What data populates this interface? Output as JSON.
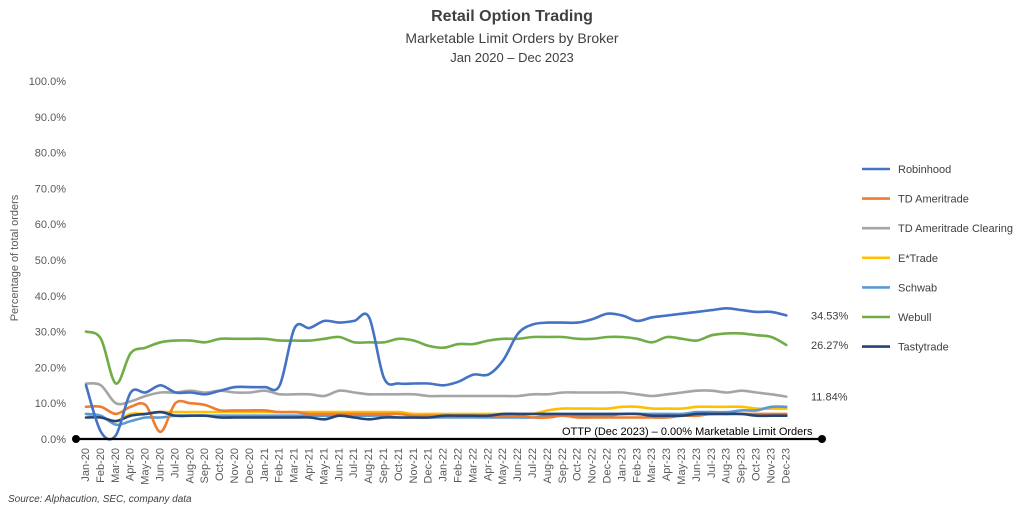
{
  "chart_data": {
    "type": "line",
    "title": "Retail Option Trading",
    "subtitle": "Marketable Limit Orders by Broker",
    "date_range": "Jan 2020 – Dec 2023",
    "ylabel": "Percentage of total orders",
    "ylim": [
      0,
      100
    ],
    "yticks": [
      "0.0%",
      "10.0%",
      "20.0%",
      "30.0%",
      "40.0%",
      "50.0%",
      "60.0%",
      "70.0%",
      "80.0%",
      "90.0%",
      "100.0%"
    ],
    "grid": false,
    "legend_position": "right",
    "categories": [
      "Jan-20",
      "Feb-20",
      "Mar-20",
      "Apr-20",
      "May-20",
      "Jun-20",
      "Jul-20",
      "Aug-20",
      "Sep-20",
      "Oct-20",
      "Nov-20",
      "Dec-20",
      "Jan-21",
      "Feb-21",
      "Mar-21",
      "Apr-21",
      "May-21",
      "Jun-21",
      "Jul-21",
      "Aug-21",
      "Sep-21",
      "Oct-21",
      "Nov-21",
      "Dec-21",
      "Jan-22",
      "Feb-22",
      "Mar-22",
      "Apr-22",
      "May-22",
      "Jun-22",
      "Jul-22",
      "Aug-22",
      "Sep-22",
      "Oct-22",
      "Nov-22",
      "Dec-22",
      "Jan-23",
      "Feb-23",
      "Mar-23",
      "Apr-23",
      "May-23",
      "Jun-23",
      "Jul-23",
      "Aug-23",
      "Sep-23",
      "Oct-23",
      "Nov-23",
      "Dec-23"
    ],
    "series": [
      {
        "name": "Robinhood",
        "color": "#4472C4",
        "values": [
          15,
          2,
          1,
          13,
          13,
          15,
          13,
          13,
          12.5,
          13.5,
          14.5,
          14.5,
          14.5,
          15,
          31,
          31,
          33,
          32.5,
          33,
          34,
          17,
          15.5,
          15.5,
          15.5,
          15,
          16,
          18,
          18,
          22,
          29.5,
          32,
          32.5,
          32.5,
          32.5,
          33.5,
          35,
          34.5,
          33,
          34,
          34.5,
          35,
          35.5,
          36,
          36.5,
          36,
          35.5,
          35.5,
          34.53
        ],
        "end_label": "34.53%"
      },
      {
        "name": "TD Ameritrade",
        "color": "#ED7D31",
        "values": [
          9,
          9,
          7,
          9,
          9.5,
          2,
          10,
          10,
          9.5,
          8,
          8,
          8,
          8,
          7.5,
          7.5,
          7,
          7,
          7,
          7,
          7,
          7,
          7,
          6.5,
          6.5,
          6.5,
          6.5,
          6.5,
          6.5,
          6.5,
          6.5,
          6,
          6,
          6.5,
          6,
          6,
          6,
          6,
          6,
          6,
          6,
          6.5,
          6.5,
          7,
          7,
          7,
          7,
          7,
          7
        ]
      },
      {
        "name": "TD Ameritrade Clearing",
        "color": "#A5A5A5",
        "values": [
          15.5,
          15,
          10,
          10.5,
          12,
          13,
          13,
          13.5,
          13,
          13.5,
          13,
          13,
          13.5,
          12.5,
          12.5,
          12.5,
          12,
          13.5,
          13,
          12.5,
          12.5,
          12.5,
          12.5,
          12,
          12,
          12,
          12,
          12,
          12,
          12,
          12.5,
          12.5,
          13,
          13,
          13,
          13,
          13,
          12.5,
          12,
          12.5,
          13,
          13.5,
          13.5,
          13,
          13.5,
          13,
          12.5,
          11.84
        ],
        "end_label": "11.84%"
      },
      {
        "name": "E*Trade",
        "color": "#FFC000",
        "values": [
          7,
          6,
          5,
          7,
          7,
          7.5,
          7.5,
          7.5,
          7.5,
          7.5,
          7.5,
          7.5,
          7.5,
          7.5,
          7.5,
          7.5,
          7.5,
          7.5,
          7.5,
          7.5,
          7.5,
          7.5,
          7,
          7,
          7,
          7,
          7,
          7,
          7,
          7,
          7,
          8,
          8.5,
          8.5,
          8.5,
          8.5,
          9,
          9,
          8.5,
          8.5,
          8.5,
          9,
          9,
          9,
          9,
          8.5,
          8.5,
          8.5
        ]
      },
      {
        "name": "Schwab",
        "color": "#5B9BD5",
        "values": [
          7,
          6.5,
          4,
          5,
          6,
          6,
          6.5,
          6.5,
          6.5,
          6.5,
          6.5,
          6.5,
          6.5,
          6.5,
          6.5,
          6.5,
          6.5,
          6.5,
          6.5,
          6.5,
          6.5,
          6,
          6,
          6,
          6,
          6,
          6,
          6,
          6,
          6,
          6,
          6.5,
          6.5,
          6.5,
          6.5,
          6.5,
          7,
          7,
          7,
          7,
          7,
          7.5,
          7.5,
          7.5,
          8,
          8,
          9,
          9
        ]
      },
      {
        "name": "Webull",
        "color": "#70AD47",
        "values": [
          30,
          28,
          15.5,
          24,
          25.5,
          27,
          27.5,
          27.5,
          27,
          28,
          28,
          28,
          28,
          27.5,
          27.5,
          27.5,
          28,
          28.5,
          27,
          27,
          27,
          28,
          27.5,
          26,
          25.5,
          26.5,
          26.5,
          27.5,
          28,
          28,
          28.5,
          28.5,
          28.5,
          28,
          28,
          28.5,
          28.5,
          28,
          27,
          28.5,
          28,
          27.5,
          29,
          29.5,
          29.5,
          29,
          28.5,
          26.27
        ],
        "end_label": "26.27%"
      },
      {
        "name": "Tastytrade",
        "color": "#264478",
        "values": [
          6,
          6,
          5,
          6.5,
          7,
          7.5,
          6.5,
          6.5,
          6.5,
          6,
          6,
          6,
          6,
          6,
          6,
          6,
          5.5,
          6.5,
          6,
          5.5,
          6,
          6,
          6,
          6,
          6.5,
          6.5,
          6.5,
          6.5,
          7,
          7,
          7,
          7,
          7,
          7,
          7,
          7,
          7,
          7,
          6.5,
          6.5,
          6.5,
          7,
          7,
          7,
          7,
          6.5,
          6.5,
          6.5
        ]
      },
      {
        "name": "OTTP (Dec 2023) – 0.00% Marketable Limit Orders",
        "color": "#000000",
        "values": [
          0,
          0,
          0,
          0,
          0,
          0,
          0,
          0,
          0,
          0,
          0,
          0,
          0,
          0,
          0,
          0,
          0,
          0,
          0,
          0,
          0,
          0,
          0,
          0,
          0,
          0,
          0,
          0,
          0,
          0,
          0,
          0,
          0,
          0,
          0,
          0,
          0,
          0,
          0,
          0,
          0,
          0,
          0,
          0,
          0,
          0,
          0,
          0
        ],
        "in_legend": false
      }
    ],
    "annotation": "OTTP (Dec 2023) – 0.00% Marketable Limit Orders",
    "source": "Source: Alphacution, SEC, company data"
  }
}
